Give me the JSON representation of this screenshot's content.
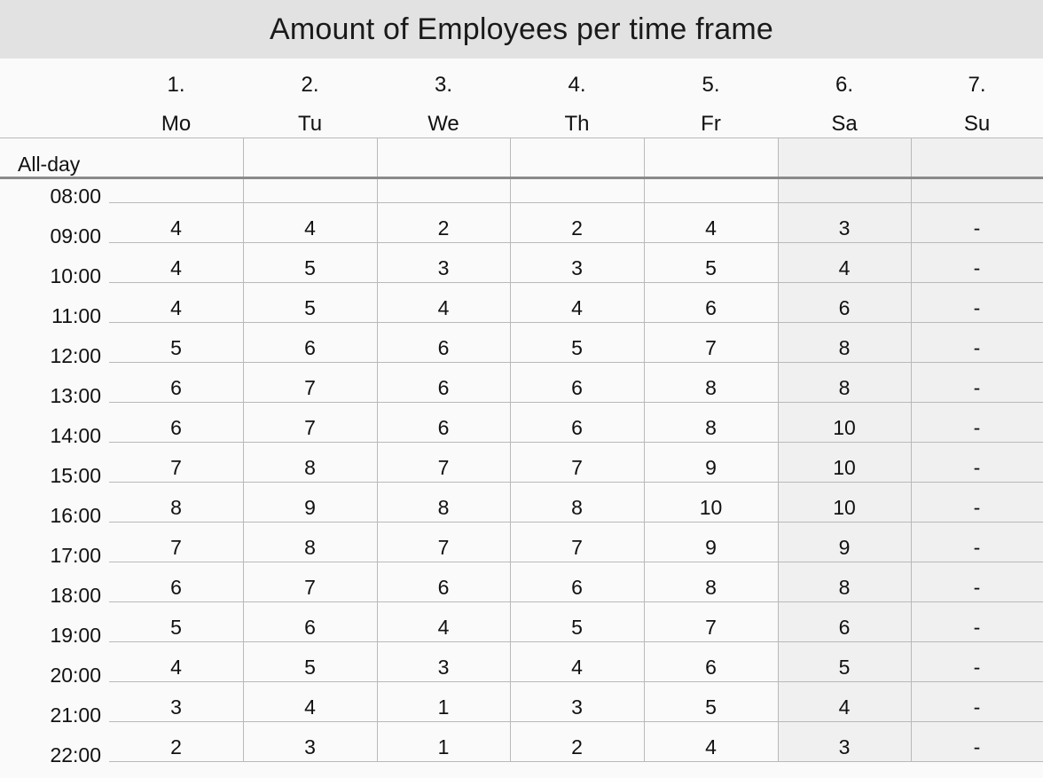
{
  "title": "Amount of Employees per time frame",
  "days": [
    {
      "num": "1.",
      "name": "Mo"
    },
    {
      "num": "2.",
      "name": "Tu"
    },
    {
      "num": "3.",
      "name": "We"
    },
    {
      "num": "4.",
      "name": "Th"
    },
    {
      "num": "5.",
      "name": "Fr"
    },
    {
      "num": "6.",
      "name": "Sa"
    },
    {
      "num": "7.",
      "name": "Su"
    }
  ],
  "allday_label": "All-day",
  "times": [
    "08:00",
    "09:00",
    "10:00",
    "11:00",
    "12:00",
    "13:00",
    "14:00",
    "15:00",
    "16:00",
    "17:00",
    "18:00",
    "19:00",
    "20:00",
    "21:00",
    "22:00"
  ],
  "rows": [
    [
      "4",
      "4",
      "2",
      "2",
      "4",
      "3",
      "-"
    ],
    [
      "4",
      "5",
      "3",
      "3",
      "5",
      "4",
      "-"
    ],
    [
      "4",
      "5",
      "4",
      "4",
      "6",
      "6",
      "-"
    ],
    [
      "5",
      "6",
      "6",
      "5",
      "7",
      "8",
      "-"
    ],
    [
      "6",
      "7",
      "6",
      "6",
      "8",
      "8",
      "-"
    ],
    [
      "6",
      "7",
      "6",
      "6",
      "8",
      "10",
      "-"
    ],
    [
      "7",
      "8",
      "7",
      "7",
      "9",
      "10",
      "-"
    ],
    [
      "8",
      "9",
      "8",
      "8",
      "10",
      "10",
      "-"
    ],
    [
      "7",
      "8",
      "7",
      "7",
      "9",
      "9",
      "-"
    ],
    [
      "6",
      "7",
      "6",
      "6",
      "8",
      "8",
      "-"
    ],
    [
      "5",
      "6",
      "4",
      "5",
      "7",
      "6",
      "-"
    ],
    [
      "4",
      "5",
      "3",
      "4",
      "6",
      "5",
      "-"
    ],
    [
      "3",
      "4",
      "1",
      "3",
      "5",
      "4",
      "-"
    ],
    [
      "2",
      "3",
      "1",
      "2",
      "4",
      "3",
      "-"
    ]
  ],
  "colors": {
    "title_bg": "#e2e2e2",
    "weekend_bg": "#f0f0f0",
    "grid_line": "#b9b9b9",
    "allday_separator": "#8a8a8a"
  }
}
